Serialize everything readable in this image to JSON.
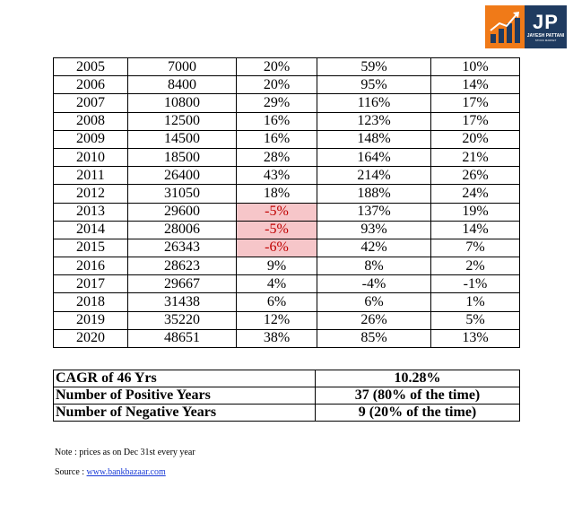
{
  "logo": {
    "initials": "JP",
    "name": "JAYESH PATTANI",
    "tagline": "STOCK MARKET",
    "colors": {
      "chart_bg": "#f07a18",
      "text_bg": "#1f3b60"
    }
  },
  "table": {
    "rows": [
      {
        "year": "2005",
        "price": "7000",
        "c3": "20%",
        "c4": "59%",
        "c5": "10%",
        "neg": false
      },
      {
        "year": "2006",
        "price": "8400",
        "c3": "20%",
        "c4": "95%",
        "c5": "14%",
        "neg": false
      },
      {
        "year": "2007",
        "price": "10800",
        "c3": "29%",
        "c4": "116%",
        "c5": "17%",
        "neg": false
      },
      {
        "year": "2008",
        "price": "12500",
        "c3": "16%",
        "c4": "123%",
        "c5": "17%",
        "neg": false
      },
      {
        "year": "2009",
        "price": "14500",
        "c3": "16%",
        "c4": "148%",
        "c5": "20%",
        "neg": false
      },
      {
        "year": "2010",
        "price": "18500",
        "c3": "28%",
        "c4": "164%",
        "c5": "21%",
        "neg": false
      },
      {
        "year": "2011",
        "price": "26400",
        "c3": "43%",
        "c4": "214%",
        "c5": "26%",
        "neg": false
      },
      {
        "year": "2012",
        "price": "31050",
        "c3": "18%",
        "c4": "188%",
        "c5": "24%",
        "neg": false
      },
      {
        "year": "2013",
        "price": "29600",
        "c3": "-5%",
        "c4": "137%",
        "c5": "19%",
        "neg": true
      },
      {
        "year": "2014",
        "price": "28006",
        "c3": "-5%",
        "c4": "93%",
        "c5": "14%",
        "neg": true
      },
      {
        "year": "2015",
        "price": "26343",
        "c3": "-6%",
        "c4": "42%",
        "c5": "7%",
        "neg": true
      },
      {
        "year": "2016",
        "price": "28623",
        "c3": "9%",
        "c4": "8%",
        "c5": "2%",
        "neg": false
      },
      {
        "year": "2017",
        "price": "29667",
        "c3": "4%",
        "c4": "-4%",
        "c5": "-1%",
        "neg": false
      },
      {
        "year": "2018",
        "price": "31438",
        "c3": "6%",
        "c4": "6%",
        "c5": "1%",
        "neg": false
      },
      {
        "year": "2019",
        "price": "35220",
        "c3": "12%",
        "c4": "26%",
        "c5": "5%",
        "neg": false
      },
      {
        "year": "2020",
        "price": "48651",
        "c3": "38%",
        "c4": "85%",
        "c5": "13%",
        "neg": false
      }
    ],
    "colors": {
      "negative_bg": "#f6c6c9",
      "negative_text": "#c00000"
    }
  },
  "summary": [
    {
      "label": "CAGR of 46 Yrs",
      "value": "10.28%"
    },
    {
      "label": "Number of Positive Years",
      "value": "37 (80% of the time)"
    },
    {
      "label": "Number of Negative Years",
      "value": "9 (20% of the time)"
    }
  ],
  "note": "Note : prices as on Dec 31st every year",
  "source": {
    "label": "Source : ",
    "link_text": "www.bankbazaar.com"
  }
}
